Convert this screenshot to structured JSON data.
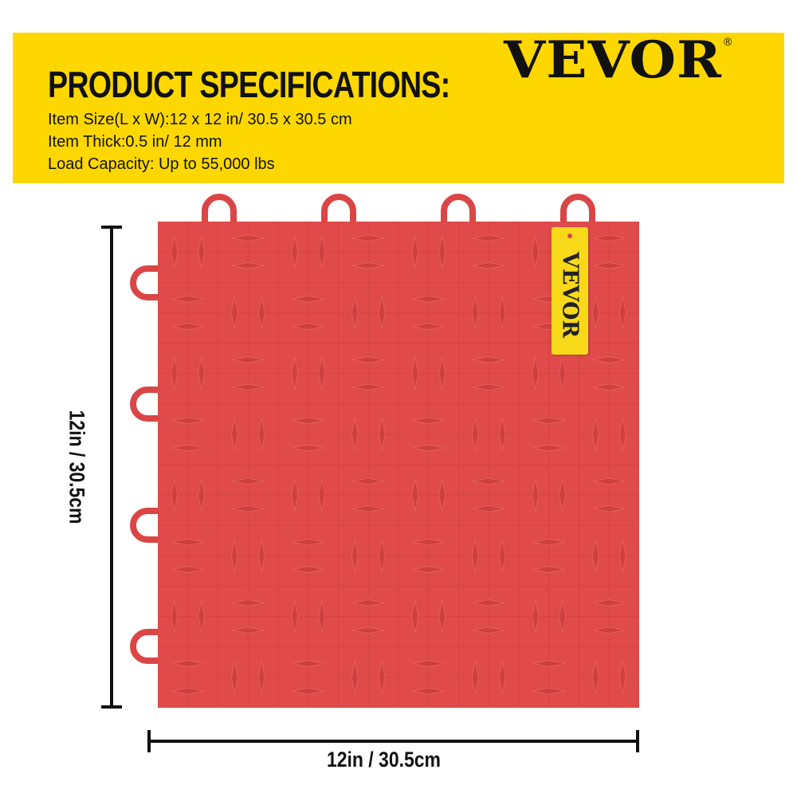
{
  "banner": {
    "title": "PRODUCT SPECIFICATIONS:",
    "specs": [
      "Item Size(L x W):12 x 12 in/ 30.5 x 30.5 cm",
      "Item Thick:0.5 in/ 12 mm",
      "Load Capacity: Up to 55,000 lbs"
    ],
    "logo": "VEVOR",
    "registered": "®",
    "background_color": "#fed700"
  },
  "product": {
    "tile_color": "#e04a4a",
    "tag_text": "VEVOR",
    "tag_color": "#f8d91a"
  },
  "dimensions": {
    "width_label": "12in / 30.5cm",
    "height_label": "12in / 30.5cm"
  }
}
